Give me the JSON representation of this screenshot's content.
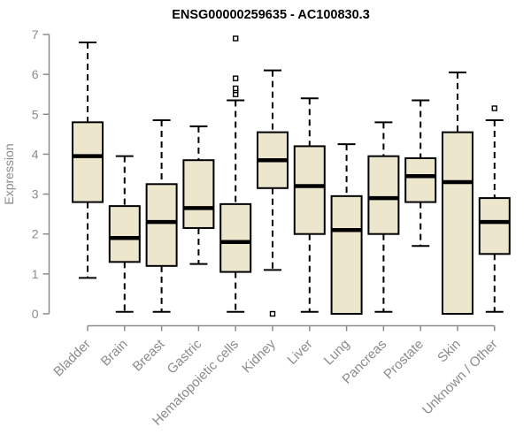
{
  "chart_data": {
    "type": "boxplot",
    "title": "ENSG00000259635 - AC100830.3",
    "ylabel": "Expression",
    "xlabel": "",
    "ylim": [
      0,
      7
    ],
    "yticks": [
      0,
      1,
      2,
      3,
      4,
      5,
      6,
      7
    ],
    "grid": false,
    "legend": "none",
    "categories": [
      "Bladder",
      "Brain",
      "Breast",
      "Gastric",
      "Hematopoietic cells",
      "Kidney",
      "Liver",
      "Lung",
      "Pancreas",
      "Prostate",
      "Skin",
      "Unknown / Other"
    ],
    "boxes": [
      {
        "category": "Bladder",
        "whisker_low": 0.9,
        "q1": 2.8,
        "median": 3.95,
        "q3": 4.8,
        "whisker_high": 6.8,
        "outliers": []
      },
      {
        "category": "Brain",
        "whisker_low": 0.05,
        "q1": 1.3,
        "median": 1.9,
        "q3": 2.7,
        "whisker_high": 3.95,
        "outliers": []
      },
      {
        "category": "Breast",
        "whisker_low": 0.05,
        "q1": 1.2,
        "median": 2.3,
        "q3": 3.25,
        "whisker_high": 4.85,
        "outliers": []
      },
      {
        "category": "Gastric",
        "whisker_low": 1.25,
        "q1": 2.15,
        "median": 2.65,
        "q3": 3.85,
        "whisker_high": 4.7,
        "outliers": []
      },
      {
        "category": "Hematopoietic cells",
        "whisker_low": 0.05,
        "q1": 1.05,
        "median": 1.8,
        "q3": 2.75,
        "whisker_high": 5.35,
        "outliers": [
          5.5,
          5.6,
          5.65,
          5.9,
          6.9
        ]
      },
      {
        "category": "Kidney",
        "whisker_low": 1.1,
        "q1": 3.15,
        "median": 3.85,
        "q3": 4.55,
        "whisker_high": 6.1,
        "outliers": [
          0
        ]
      },
      {
        "category": "Liver",
        "whisker_low": 0.05,
        "q1": 2.0,
        "median": 3.2,
        "q3": 4.2,
        "whisker_high": 5.4,
        "outliers": []
      },
      {
        "category": "Lung",
        "whisker_low": 0,
        "q1": 0,
        "median": 2.1,
        "q3": 2.95,
        "whisker_high": 4.25,
        "outliers": []
      },
      {
        "category": "Pancreas",
        "whisker_low": 0.05,
        "q1": 2.0,
        "median": 2.9,
        "q3": 3.95,
        "whisker_high": 4.8,
        "outliers": []
      },
      {
        "category": "Prostate",
        "whisker_low": 1.7,
        "q1": 2.8,
        "median": 3.45,
        "q3": 3.9,
        "whisker_high": 5.35,
        "outliers": []
      },
      {
        "category": "Skin",
        "whisker_low": 0,
        "q1": 0,
        "median": 3.3,
        "q3": 4.55,
        "whisker_high": 6.05,
        "outliers": []
      },
      {
        "category": "Unknown / Other",
        "whisker_low": 0.05,
        "q1": 1.5,
        "median": 2.3,
        "q3": 2.9,
        "whisker_high": 4.85,
        "outliers": [
          5.15
        ]
      }
    ],
    "style": {
      "box_fill": "#ece6cc",
      "box_stroke": "#000000",
      "median_color": "#000000",
      "axis_color": "#8b8b8b",
      "tick_label_color": "#8b8b8b",
      "title_color": "#000000",
      "background": "#ffffff"
    }
  }
}
